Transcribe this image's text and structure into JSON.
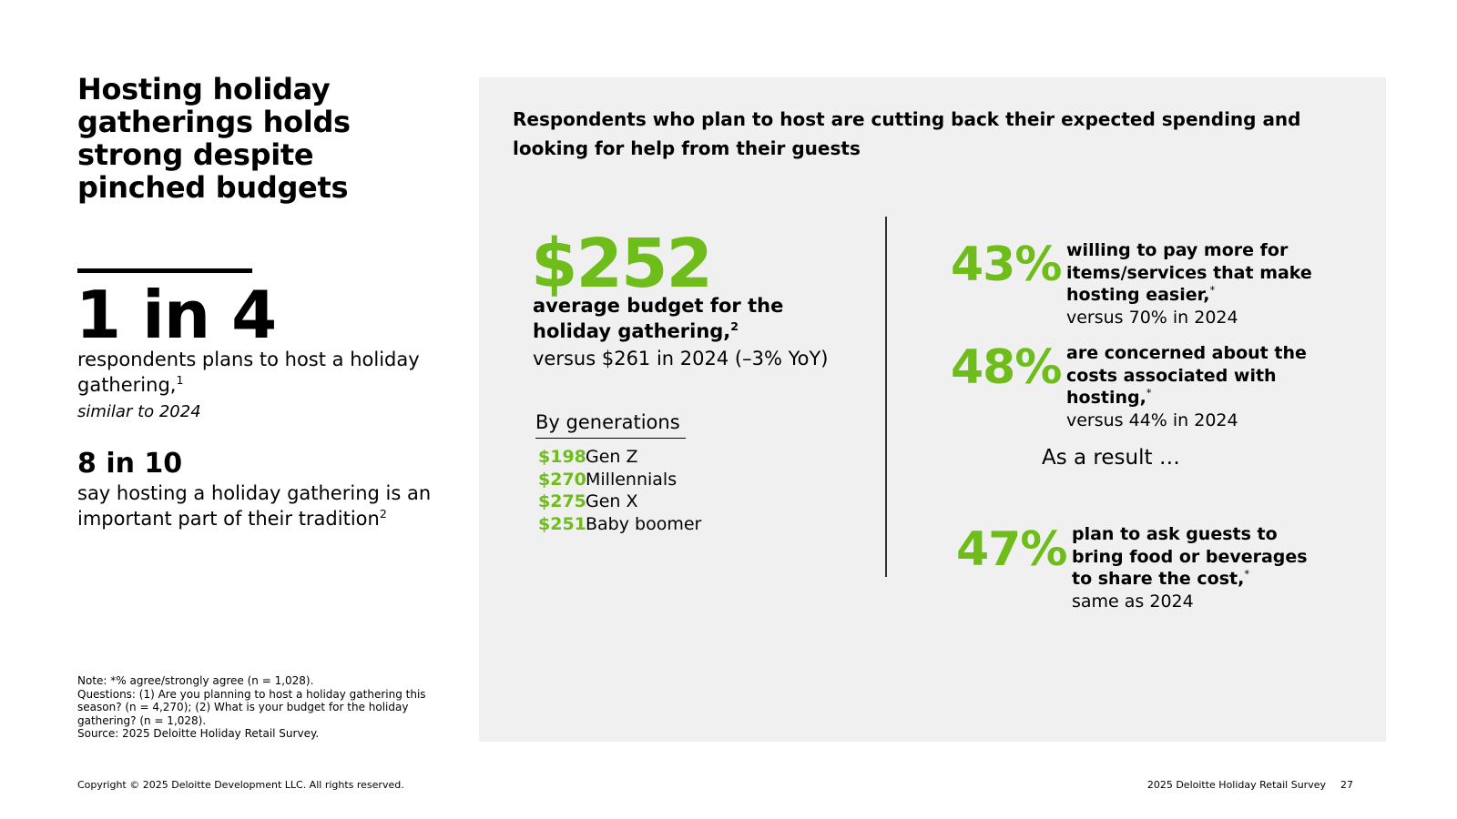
{
  "left": {
    "title": "Hosting holiday gatherings holds strong despite pinched budgets",
    "stat1": {
      "value": "1 in 4",
      "desc": "respondents plans to host a holiday gathering,",
      "sup": "1",
      "sub": "similar to 2024"
    },
    "stat2": {
      "value": "8 in 10",
      "desc": "say hosting a holiday gathering is an important part of their tradition",
      "sup": "2"
    },
    "notes": [
      "Note: *% agree/strongly agree (n = 1,028).",
      "Questions: (1) Are you planning to host a holiday gathering this season? (n = 4,270); (2) What is your budget for the holiday gathering? (n = 1,028).",
      "Source: 2025 Deloitte Holiday Retail Survey."
    ]
  },
  "panel": {
    "heading": "Respondents who plan to host are cutting back their expected spending and looking for help from their guests",
    "budget": {
      "value": "$252",
      "desc": "average budget for the holiday gathering,",
      "sup": "2",
      "sub": "versus $261 in 2024 (–3% YoY)"
    },
    "generations": {
      "title": "By generations",
      "items": [
        {
          "amount": "$198",
          "label": "Gen Z"
        },
        {
          "amount": "$270",
          "label": "Millennials"
        },
        {
          "amount": "$275",
          "label": "Gen X"
        },
        {
          "amount": "$251",
          "label": "Baby boomer"
        }
      ]
    },
    "stats": [
      {
        "pct": "43%",
        "desc": "willing to pay more for items/services that make hosting easier,",
        "sup": "*",
        "sub": "versus 70% in 2024"
      },
      {
        "pct": "48%",
        "desc": "are concerned about the costs associated with hosting,",
        "sup": "*",
        "sub": "versus 44% in 2024"
      },
      {
        "pct": "47%",
        "desc": "plan to ask guests to bring food or beverages to share the cost,",
        "sup": "*",
        "sub": "same as 2024"
      }
    ],
    "result_text": "As a result …"
  },
  "footer": {
    "copyright": "Copyright © 2025 Deloitte Development LLC. All rights reserved.",
    "survey": "2025 Deloitte Holiday Retail Survey",
    "page": "27"
  },
  "colors": {
    "accent_green": "#6ebd1a",
    "panel_bg": "#f0f0f0"
  }
}
